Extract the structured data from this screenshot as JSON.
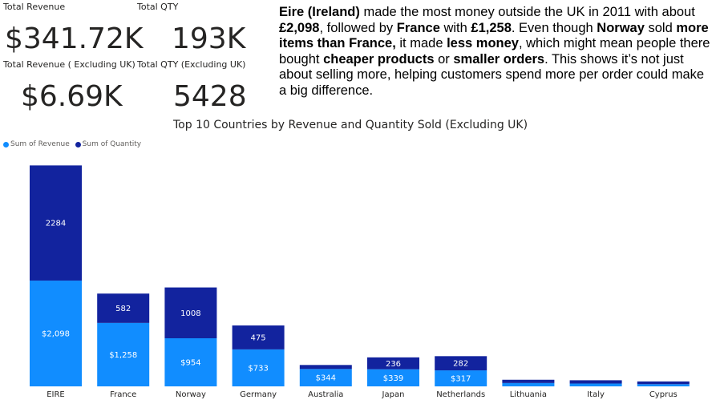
{
  "kpis": {
    "total_revenue": {
      "label": "Total Revenue",
      "value": "$341.72K"
    },
    "total_qty": {
      "label": "Total QTY",
      "value": "193K"
    },
    "revenue_ex_uk": {
      "label": "Total Revenue ( Excluding UK)",
      "value": "$6.69K"
    },
    "qty_ex_uk": {
      "label": "Total QTY (Excluding UK)",
      "value": "5428"
    }
  },
  "narrative": {
    "segments": [
      {
        "t": "Eire (Ireland)",
        "b": true
      },
      {
        "t": " made the most money outside the UK in 2011 with about ",
        "b": false
      },
      {
        "t": "£2,098",
        "b": true
      },
      {
        "t": ", followed by ",
        "b": false
      },
      {
        "t": "France",
        "b": true
      },
      {
        "t": " with ",
        "b": false
      },
      {
        "t": "£1,258",
        "b": true
      },
      {
        "t": ". Even though ",
        "b": false
      },
      {
        "t": "Norway",
        "b": true
      },
      {
        "t": " sold ",
        "b": false
      },
      {
        "t": "more items than France,",
        "b": true
      },
      {
        "t": " it made ",
        "b": false
      },
      {
        "t": "less money",
        "b": true
      },
      {
        "t": ", which might mean people there bought ",
        "b": false
      },
      {
        "t": "cheaper products",
        "b": true
      },
      {
        "t": " or ",
        "b": false
      },
      {
        "t": "smaller orders",
        "b": true
      },
      {
        "t": ". This shows it’s not just about selling more, helping customers spend more per order could make a big difference.",
        "b": false
      }
    ]
  },
  "colors": {
    "revenue": "#118dff",
    "quantity": "#12239e",
    "label": "#ffffff",
    "axis_text": "#252423"
  },
  "chart_data": {
    "type": "bar",
    "stacked": true,
    "title": "Top 10 Countries by Revenue and Quantity Sold (Excluding UK)",
    "categories": [
      "EIRE",
      "France",
      "Norway",
      "Germany",
      "Australia",
      "Japan",
      "Netherlands",
      "Lithuania",
      "Italy",
      "Cyprus"
    ],
    "series": [
      {
        "name": "Sum of Revenue",
        "values": [
          2098,
          1258,
          954,
          733,
          344,
          339,
          317,
          66,
          56,
          43
        ],
        "labels": [
          "$2,098",
          "$1,258",
          "$954",
          "$733",
          "$344",
          "$339",
          "$317",
          "",
          "",
          ""
        ]
      },
      {
        "name": "Sum of Quantity",
        "values": [
          2284,
          582,
          1008,
          475,
          80,
          236,
          282,
          65,
          65,
          55
        ],
        "labels": [
          "2284",
          "582",
          "1008",
          "475",
          "",
          "236",
          "282",
          "",
          "",
          ""
        ]
      }
    ],
    "legend": "top-left",
    "grid": false
  }
}
